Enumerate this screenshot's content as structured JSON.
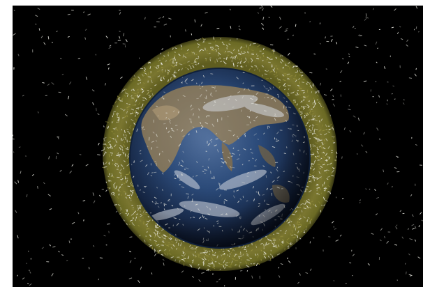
{
  "image": {
    "colors": {
      "space": "#000000",
      "debris_ring": "#6b6a24",
      "debris_ring_light": "#9a9440",
      "debris": "#e8e8e0",
      "ocean": "#2a4a7a",
      "ocean_dark": "#14233f",
      "land": "#8c7a5a",
      "cloud": "#d8dce4"
    },
    "icons": [
      "earth-globe",
      "debris-ring",
      "space-debris-field"
    ]
  }
}
